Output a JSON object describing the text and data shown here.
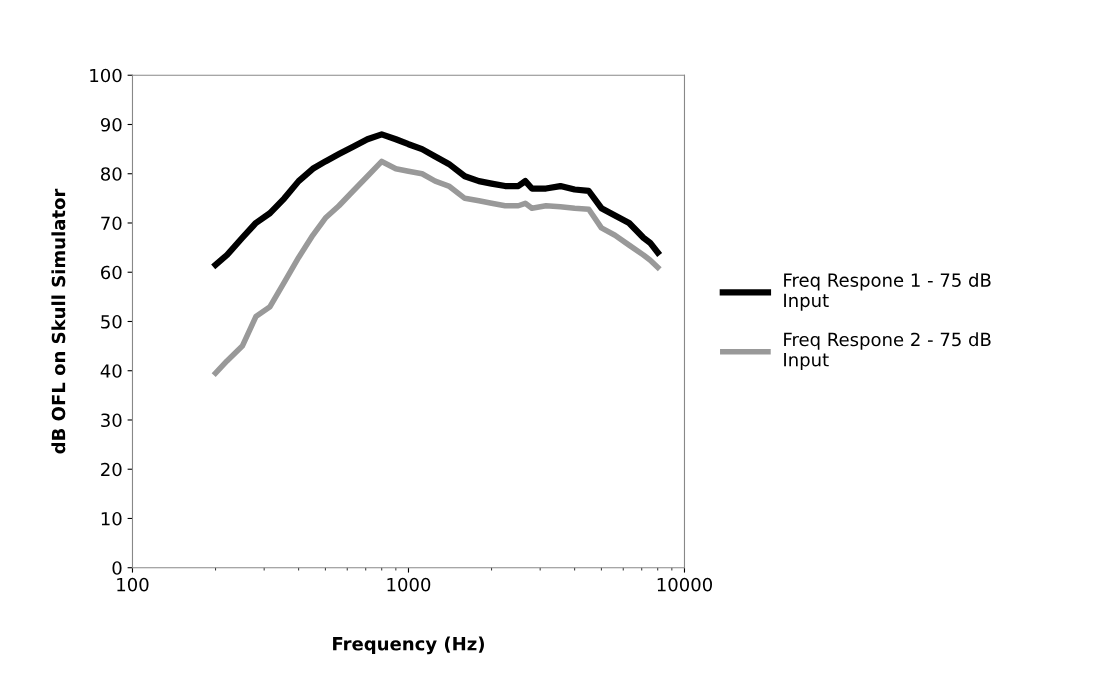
{
  "chart_data": {
    "type": "line",
    "xlabel": "Frequency (Hz)",
    "ylabel": "dB OFL on Skull Simulator",
    "log": "x",
    "xlim": [
      100,
      10000
    ],
    "xticks": [
      100,
      1000,
      10000
    ],
    "ylim": [
      0,
      100
    ],
    "yticks": [
      0,
      10,
      20,
      30,
      40,
      50,
      60,
      70,
      80,
      90,
      100
    ],
    "grid": false,
    "legend": "right",
    "marker": "none",
    "line_style": "solid",
    "x": [
      200,
      220,
      250,
      280,
      315,
      355,
      400,
      450,
      500,
      560,
      630,
      710,
      800,
      900,
      1000,
      1120,
      1250,
      1400,
      1600,
      1800,
      2000,
      2240,
      2500,
      2650,
      2800,
      3150,
      3550,
      4000,
      4500,
      5000,
      5600,
      6300,
      7100,
      7500,
      8000
    ],
    "series": [
      {
        "name": "Freq Respone 1 - 75 dB Input",
        "color": "#000000",
        "values": [
          61.5,
          63.5,
          67,
          70,
          72,
          75,
          78.5,
          81,
          82.5,
          84,
          85.5,
          87,
          88,
          87,
          86,
          85,
          83.5,
          82,
          79.5,
          78.5,
          78,
          77.5,
          77.5,
          78.5,
          77,
          77,
          77.5,
          76.8,
          76.5,
          73,
          71.5,
          70,
          67,
          66,
          64
        ]
      },
      {
        "name": "Freq Respone 2 - 75 dB Input",
        "color": "#999999",
        "values": [
          39.5,
          42,
          45,
          51,
          53,
          58,
          63,
          67.5,
          71,
          73.5,
          76.5,
          79.5,
          82.5,
          81,
          80.5,
          80,
          78.5,
          77.5,
          75,
          74.5,
          74,
          73.5,
          73.5,
          74,
          73,
          73.5,
          73.3,
          73,
          72.8,
          69,
          67.5,
          65.5,
          63.5,
          62.5,
          61
        ]
      }
    ]
  }
}
